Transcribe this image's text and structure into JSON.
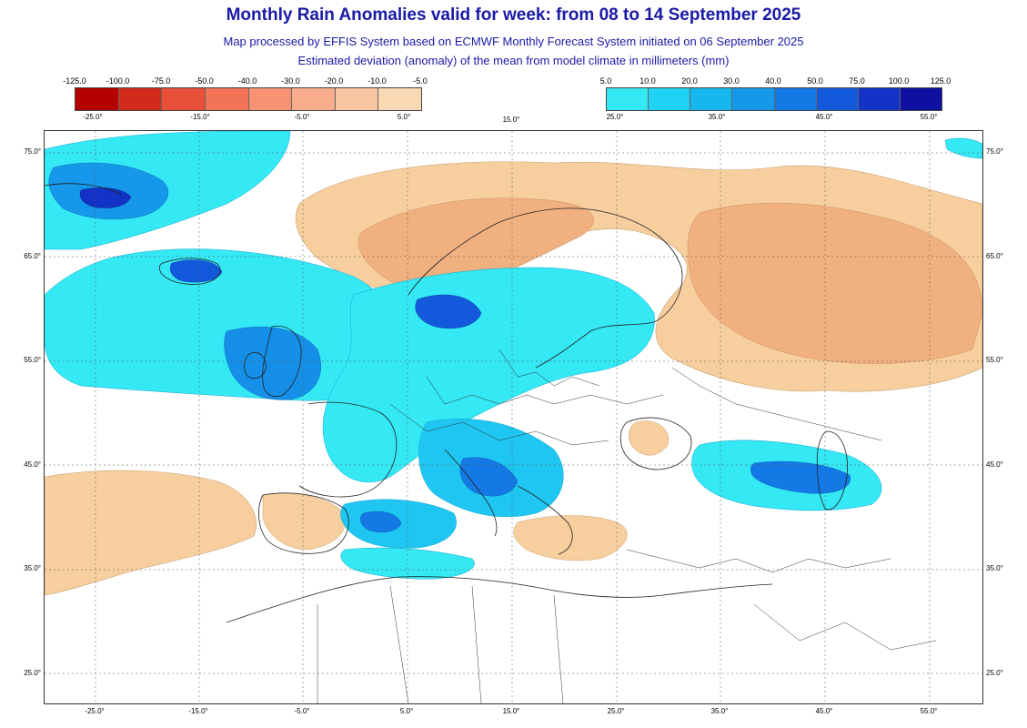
{
  "title": "Monthly Rain Anomalies valid for week: from 08 to 14 September 2025",
  "subtitle_1": "Map processed by EFFIS System based on ECMWF Monthly Forecast System initiated on 06 September 2025",
  "subtitle_2": "Estimated deviation (anomaly) of the mean from model climate in millimeters (mm)",
  "legend_dry": {
    "ticks": [
      "-125.0",
      "-100.0",
      "-75.0",
      "-50.0",
      "-40.0",
      "-30.0",
      "-20.0",
      "-10.0",
      "-5.0"
    ],
    "colors": [
      "#b30000",
      "#d42a1c",
      "#e8503a",
      "#f27355",
      "#f79273",
      "#f8ad8c",
      "#f9c6a2",
      "#f9d8b4"
    ]
  },
  "legend_wet": {
    "ticks": [
      "5.0",
      "10.0",
      "20.0",
      "30.0",
      "40.0",
      "50.0",
      "75.0",
      "100.0",
      "125.0"
    ],
    "colors": [
      "#34e8f4",
      "#1fd1f2",
      "#17b6ee",
      "#1597ea",
      "#1479e4",
      "#1359dc",
      "#1233c6",
      "#0f10a0"
    ]
  },
  "lon_labels": [
    "-25.0°",
    "-15.0°",
    "-5.0°",
    "5.0°",
    "15.0°",
    "25.0°",
    "35.0°",
    "45.0°",
    "55.0°"
  ],
  "lat_labels": [
    "75.0°",
    "65.0°",
    "55.0°",
    "45.0°",
    "35.0°",
    "25.0°"
  ],
  "colors": {
    "title": "#1a1aa6",
    "dry": "#f7cf9f",
    "dry_mid": "#f1b080",
    "wet_light": "#34e8f4",
    "wet_mid": "#1fc6f1",
    "wet_deep": "#168fe8",
    "wet_darkest": "#1233c6",
    "coast": "#222222",
    "grid": "#555555"
  }
}
